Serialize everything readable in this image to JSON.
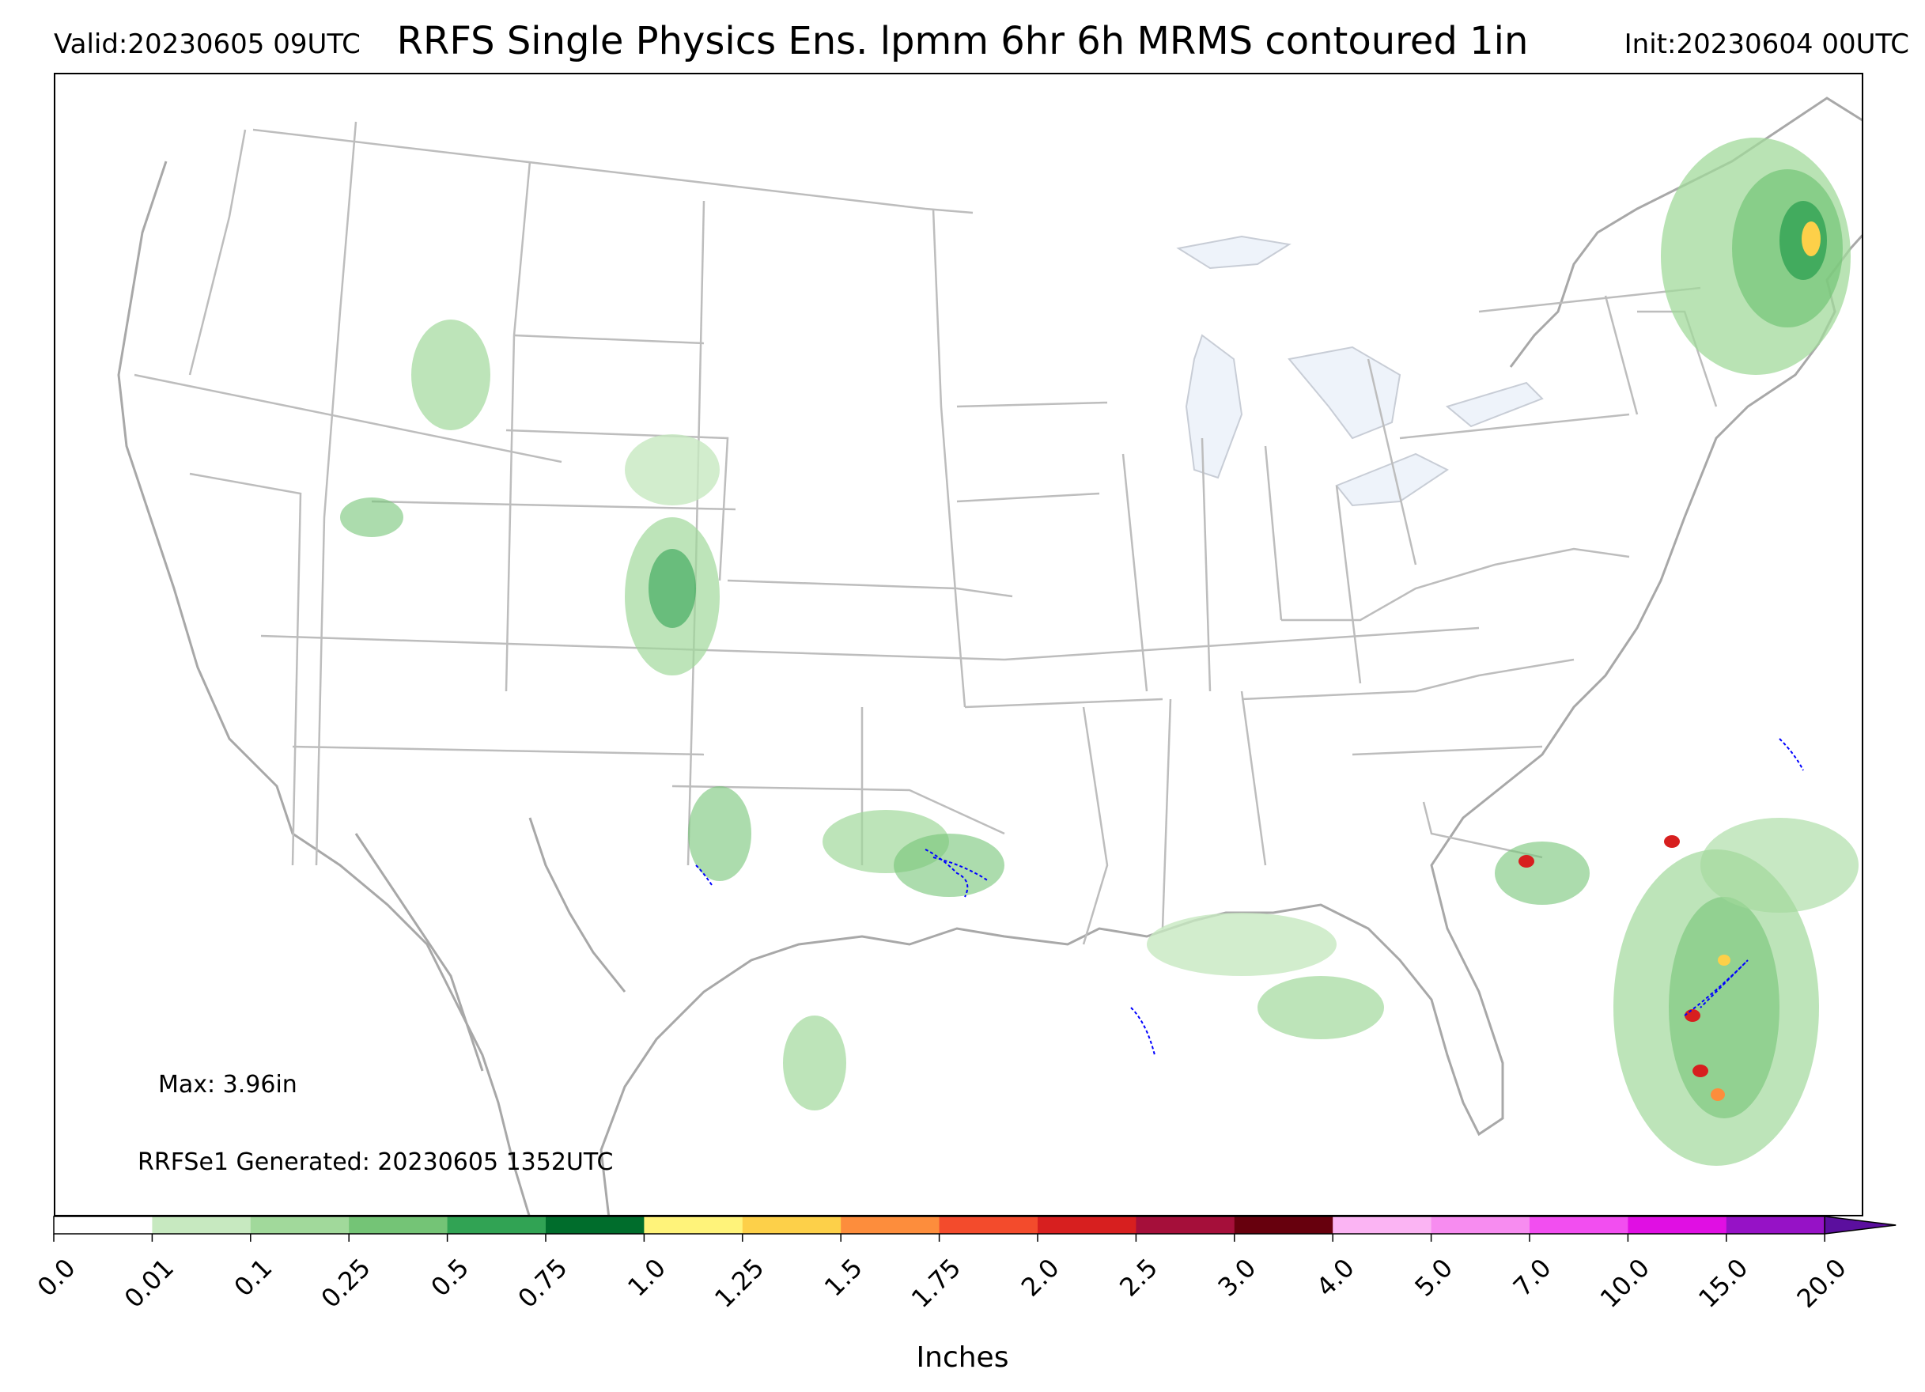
{
  "header": {
    "valid": "Valid:20230605 09UTC",
    "title": "RRFS Single Physics Ens. lpmm 6hr 6h MRMS contoured 1in",
    "init": "Init:20230604 00UTC"
  },
  "annotations": {
    "max": "Max: 3.96in",
    "generated": "RRFSe1 Generated: 20230605 1352UTC"
  },
  "colorbar": {
    "label": "Inches",
    "ticks": [
      "0.0",
      "0.01",
      "0.1",
      "0.25",
      "0.5",
      "0.75",
      "1.0",
      "1.25",
      "1.5",
      "1.75",
      "2.0",
      "2.5",
      "3.0",
      "4.0",
      "5.0",
      "7.0",
      "10.0",
      "15.0",
      "20.0"
    ],
    "colors": [
      "#ffffff",
      "#c7e9c0",
      "#a1d99b",
      "#74c476",
      "#31a354",
      "#006d2c",
      "#fff37a",
      "#fdd049",
      "#fd8d3c",
      "#f34b2c",
      "#d71f1f",
      "#a50f3a",
      "#67000d",
      "#fbb4f3",
      "#f78cf0",
      "#f24ef0",
      "#e00fe3",
      "#9612c6"
    ],
    "extend_color": "#5b0f9e"
  },
  "map_colors": {
    "border": "#bdbdbd",
    "coast": "#a8a8a8",
    "lake": "#eef3fa",
    "mrms_contour": "#0000ff"
  }
}
